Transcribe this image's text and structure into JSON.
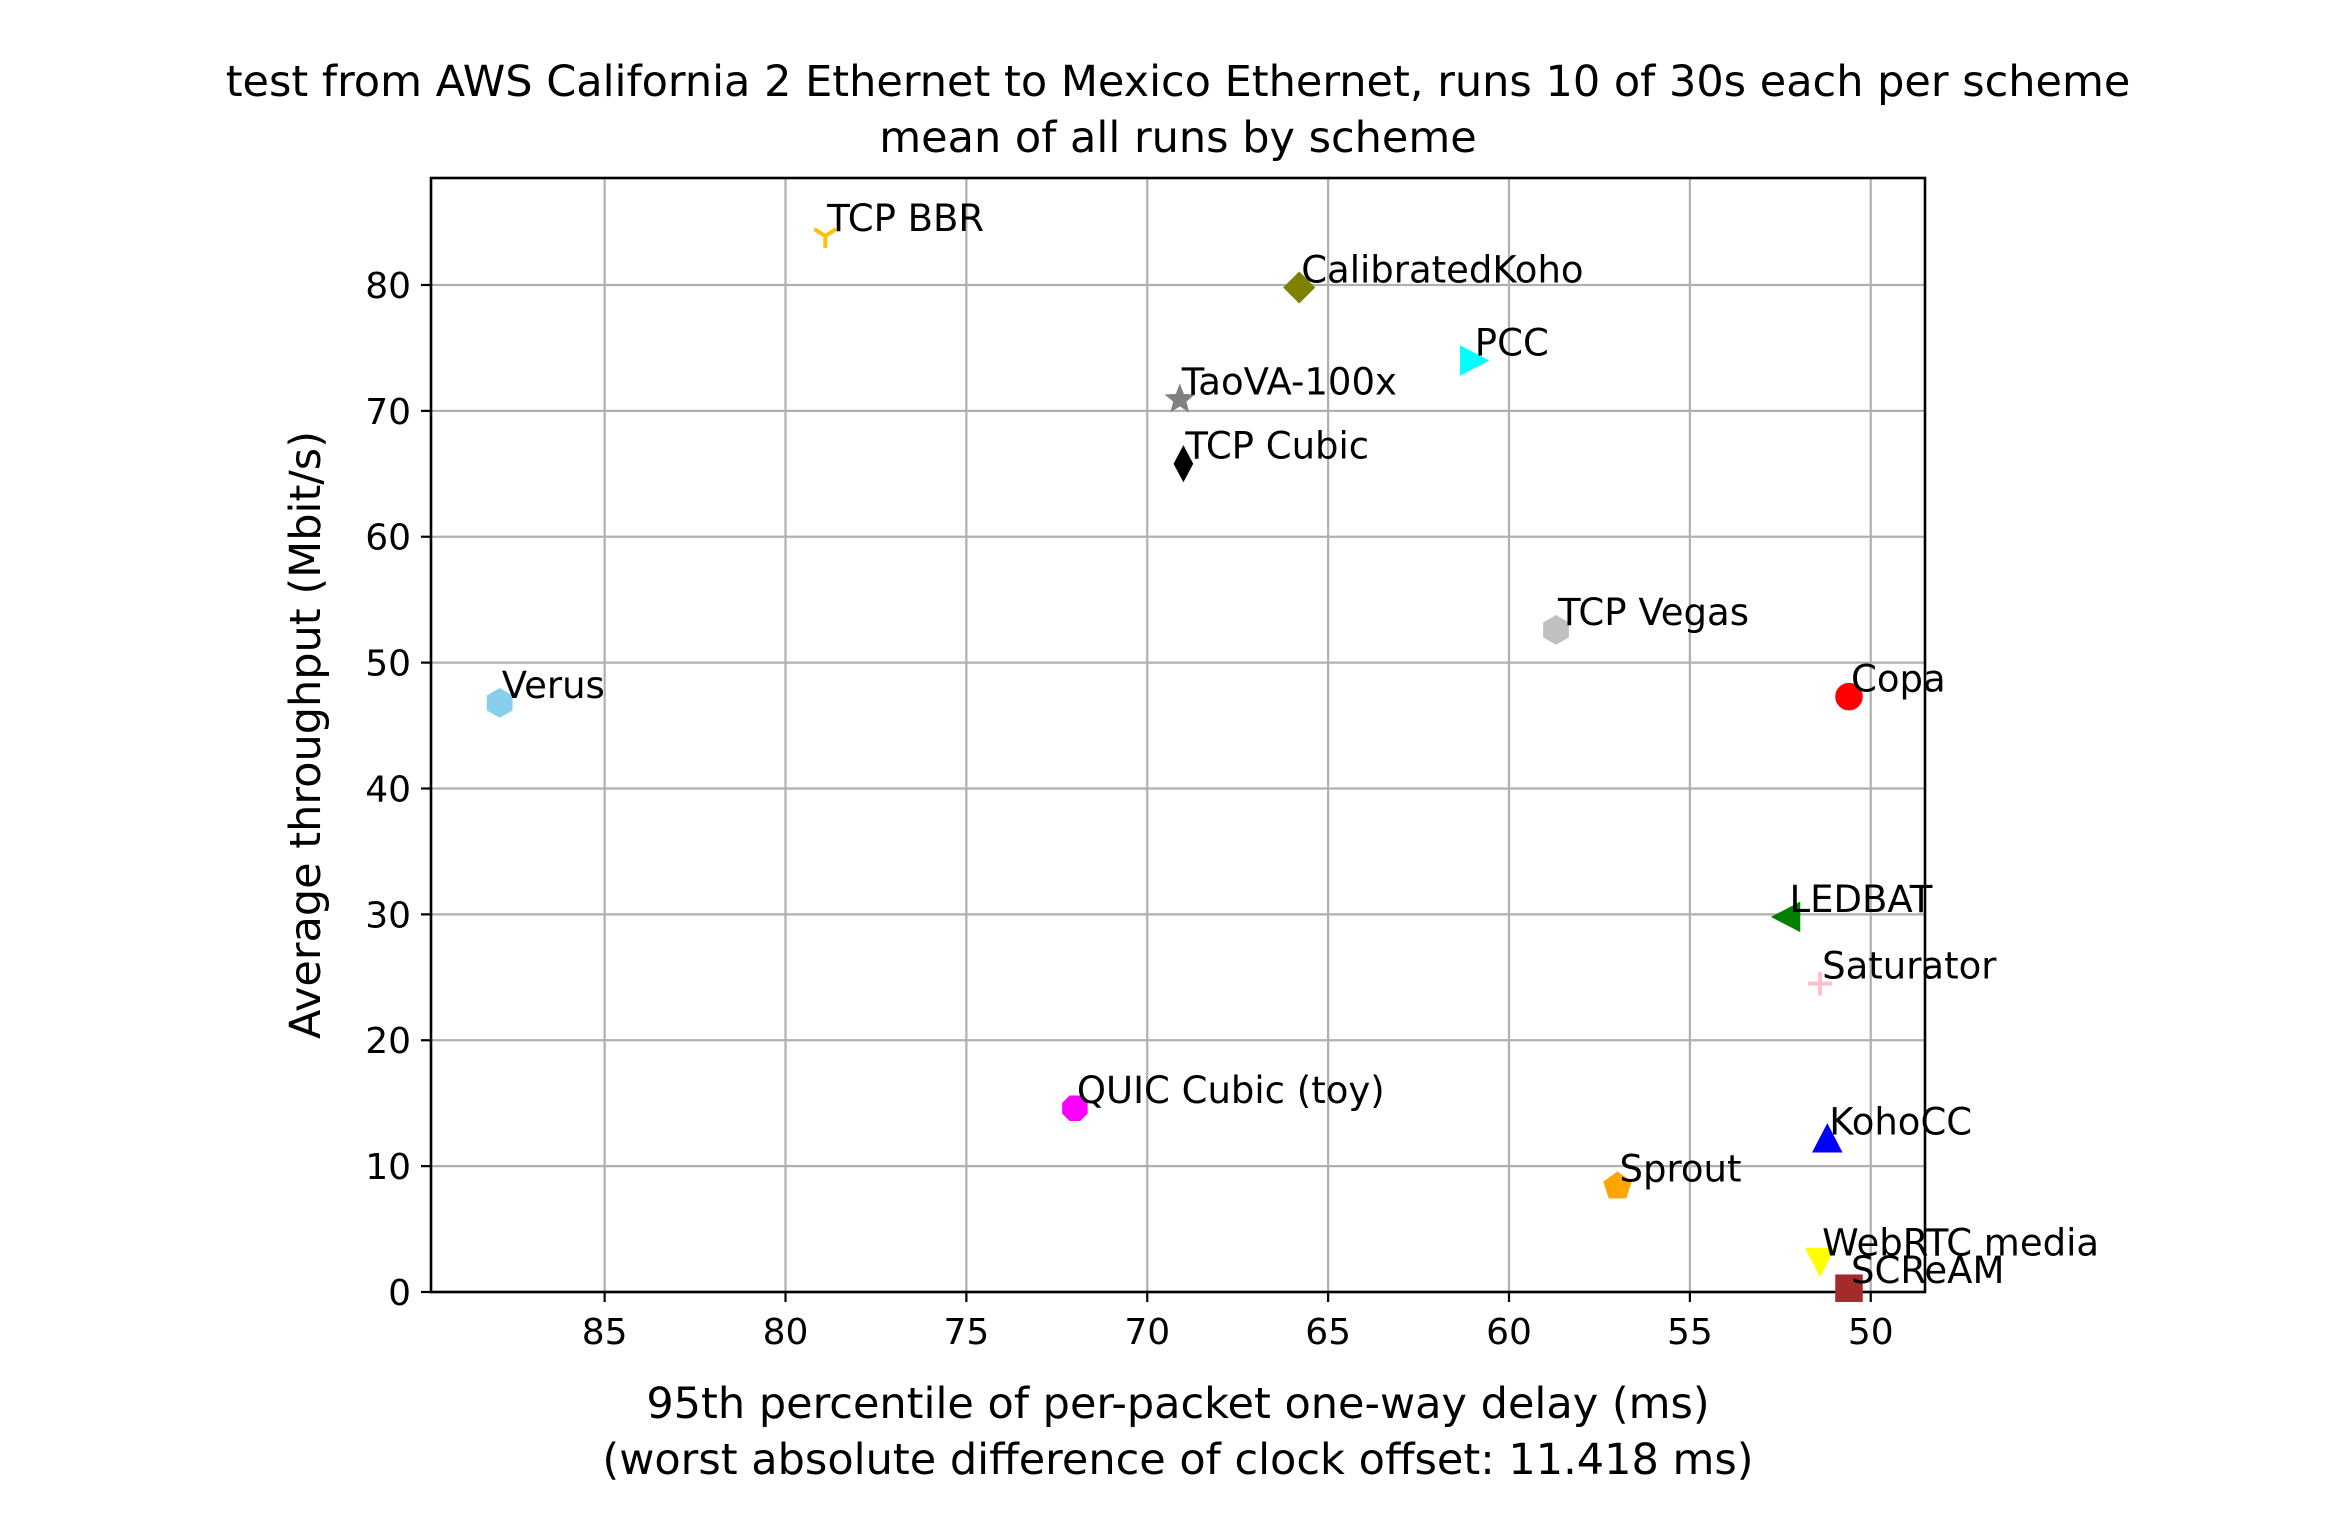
{
  "chart_data": {
    "type": "scatter",
    "title": "test from AWS California 2 Ethernet to Mexico Ethernet, runs 10 of 30s each per scheme",
    "subtitle": "mean of all runs by scheme",
    "xlabel": "95th percentile of per-packet one-way delay (ms)",
    "xlabel2": "(worst absolute difference of clock offset: 11.418 ms)",
    "ylabel": "Average throughput (Mbit/s)",
    "x_inverted": true,
    "xlim": [
      89.8,
      48.5
    ],
    "ylim": [
      0,
      88.5
    ],
    "xticks": [
      85,
      80,
      75,
      70,
      65,
      60,
      55,
      50
    ],
    "yticks": [
      0,
      10,
      20,
      30,
      40,
      50,
      60,
      70,
      80
    ],
    "grid": true,
    "points": [
      {
        "label": "TCP BBR",
        "x": 78.9,
        "y": 83.9,
        "color": "#ffc107",
        "marker": "tri-down"
      },
      {
        "label": "CalibratedKoho",
        "x": 65.8,
        "y": 79.8,
        "color": "#808000",
        "marker": "diamond"
      },
      {
        "label": "PCC",
        "x": 61.0,
        "y": 74.0,
        "color": "#00ffff",
        "marker": "triangle-right"
      },
      {
        "label": "TaoVA-100x",
        "x": 69.1,
        "y": 70.9,
        "color": "#808080",
        "marker": "star"
      },
      {
        "label": "TCP Cubic",
        "x": 69.0,
        "y": 65.8,
        "color": "#000000",
        "marker": "thin-diamond"
      },
      {
        "label": "TCP Vegas",
        "x": 58.7,
        "y": 52.6,
        "color": "#c0c0c0",
        "marker": "hexagon"
      },
      {
        "label": "Verus",
        "x": 87.9,
        "y": 46.8,
        "color": "#87ceeb",
        "marker": "hexagon"
      },
      {
        "label": "Copa",
        "x": 50.6,
        "y": 47.3,
        "color": "#ff0000",
        "marker": "circle"
      },
      {
        "label": "LEDBAT",
        "x": 52.3,
        "y": 29.8,
        "color": "#008000",
        "marker": "triangle-left"
      },
      {
        "label": "Saturator",
        "x": 51.4,
        "y": 24.5,
        "color": "#ffc0cb",
        "marker": "plus"
      },
      {
        "label": "QUIC Cubic (toy)",
        "x": 72.0,
        "y": 14.6,
        "color": "#ff00ff",
        "marker": "octagon"
      },
      {
        "label": "KohoCC",
        "x": 51.2,
        "y": 12.1,
        "color": "#0000ff",
        "marker": "triangle-up"
      },
      {
        "label": "Sprout",
        "x": 57.0,
        "y": 8.4,
        "color": "#ffa500",
        "marker": "pentagon"
      },
      {
        "label": "WebRTC media",
        "x": 51.4,
        "y": 2.5,
        "color": "#ffff00",
        "marker": "triangle-down"
      },
      {
        "label": "SCReAM",
        "x": 50.6,
        "y": 0.3,
        "color": "#a52a2a",
        "marker": "square"
      }
    ]
  }
}
